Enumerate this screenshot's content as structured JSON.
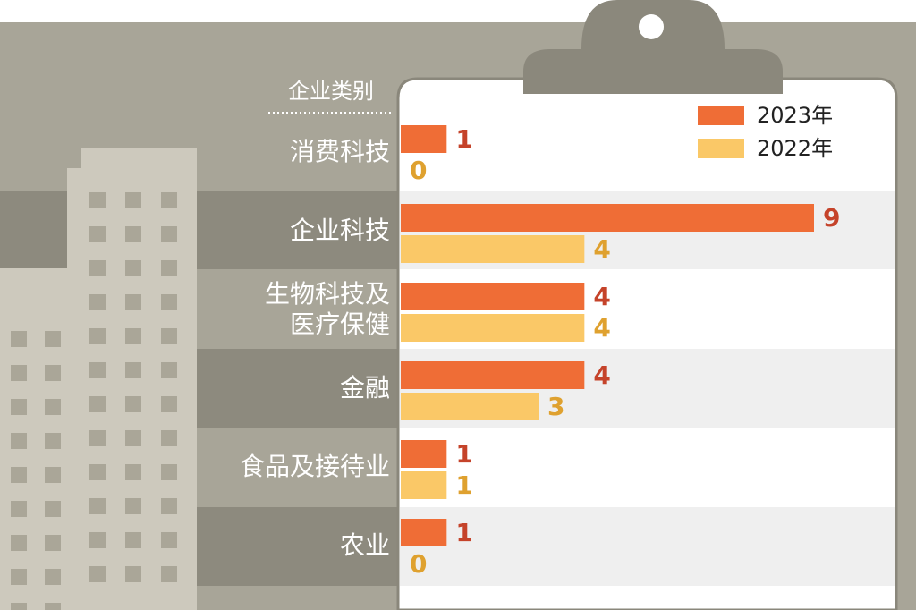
{
  "chart_data": {
    "type": "bar",
    "orientation": "horizontal",
    "category_axis_label": "企业类别",
    "categories": [
      "消费科技",
      "企业科技",
      "生物科技及\n医疗保健",
      "金融",
      "食品及接待业",
      "农业"
    ],
    "series": [
      {
        "name": "2023年",
        "color": "#ef6d36",
        "label_color": "#c5432a",
        "values": [
          1,
          9,
          4,
          4,
          1,
          1
        ]
      },
      {
        "name": "2022年",
        "color": "#fac867",
        "label_color": "#dfa12f",
        "values": [
          0,
          4,
          4,
          3,
          1,
          0
        ]
      }
    ],
    "legend": "top-right"
  }
}
